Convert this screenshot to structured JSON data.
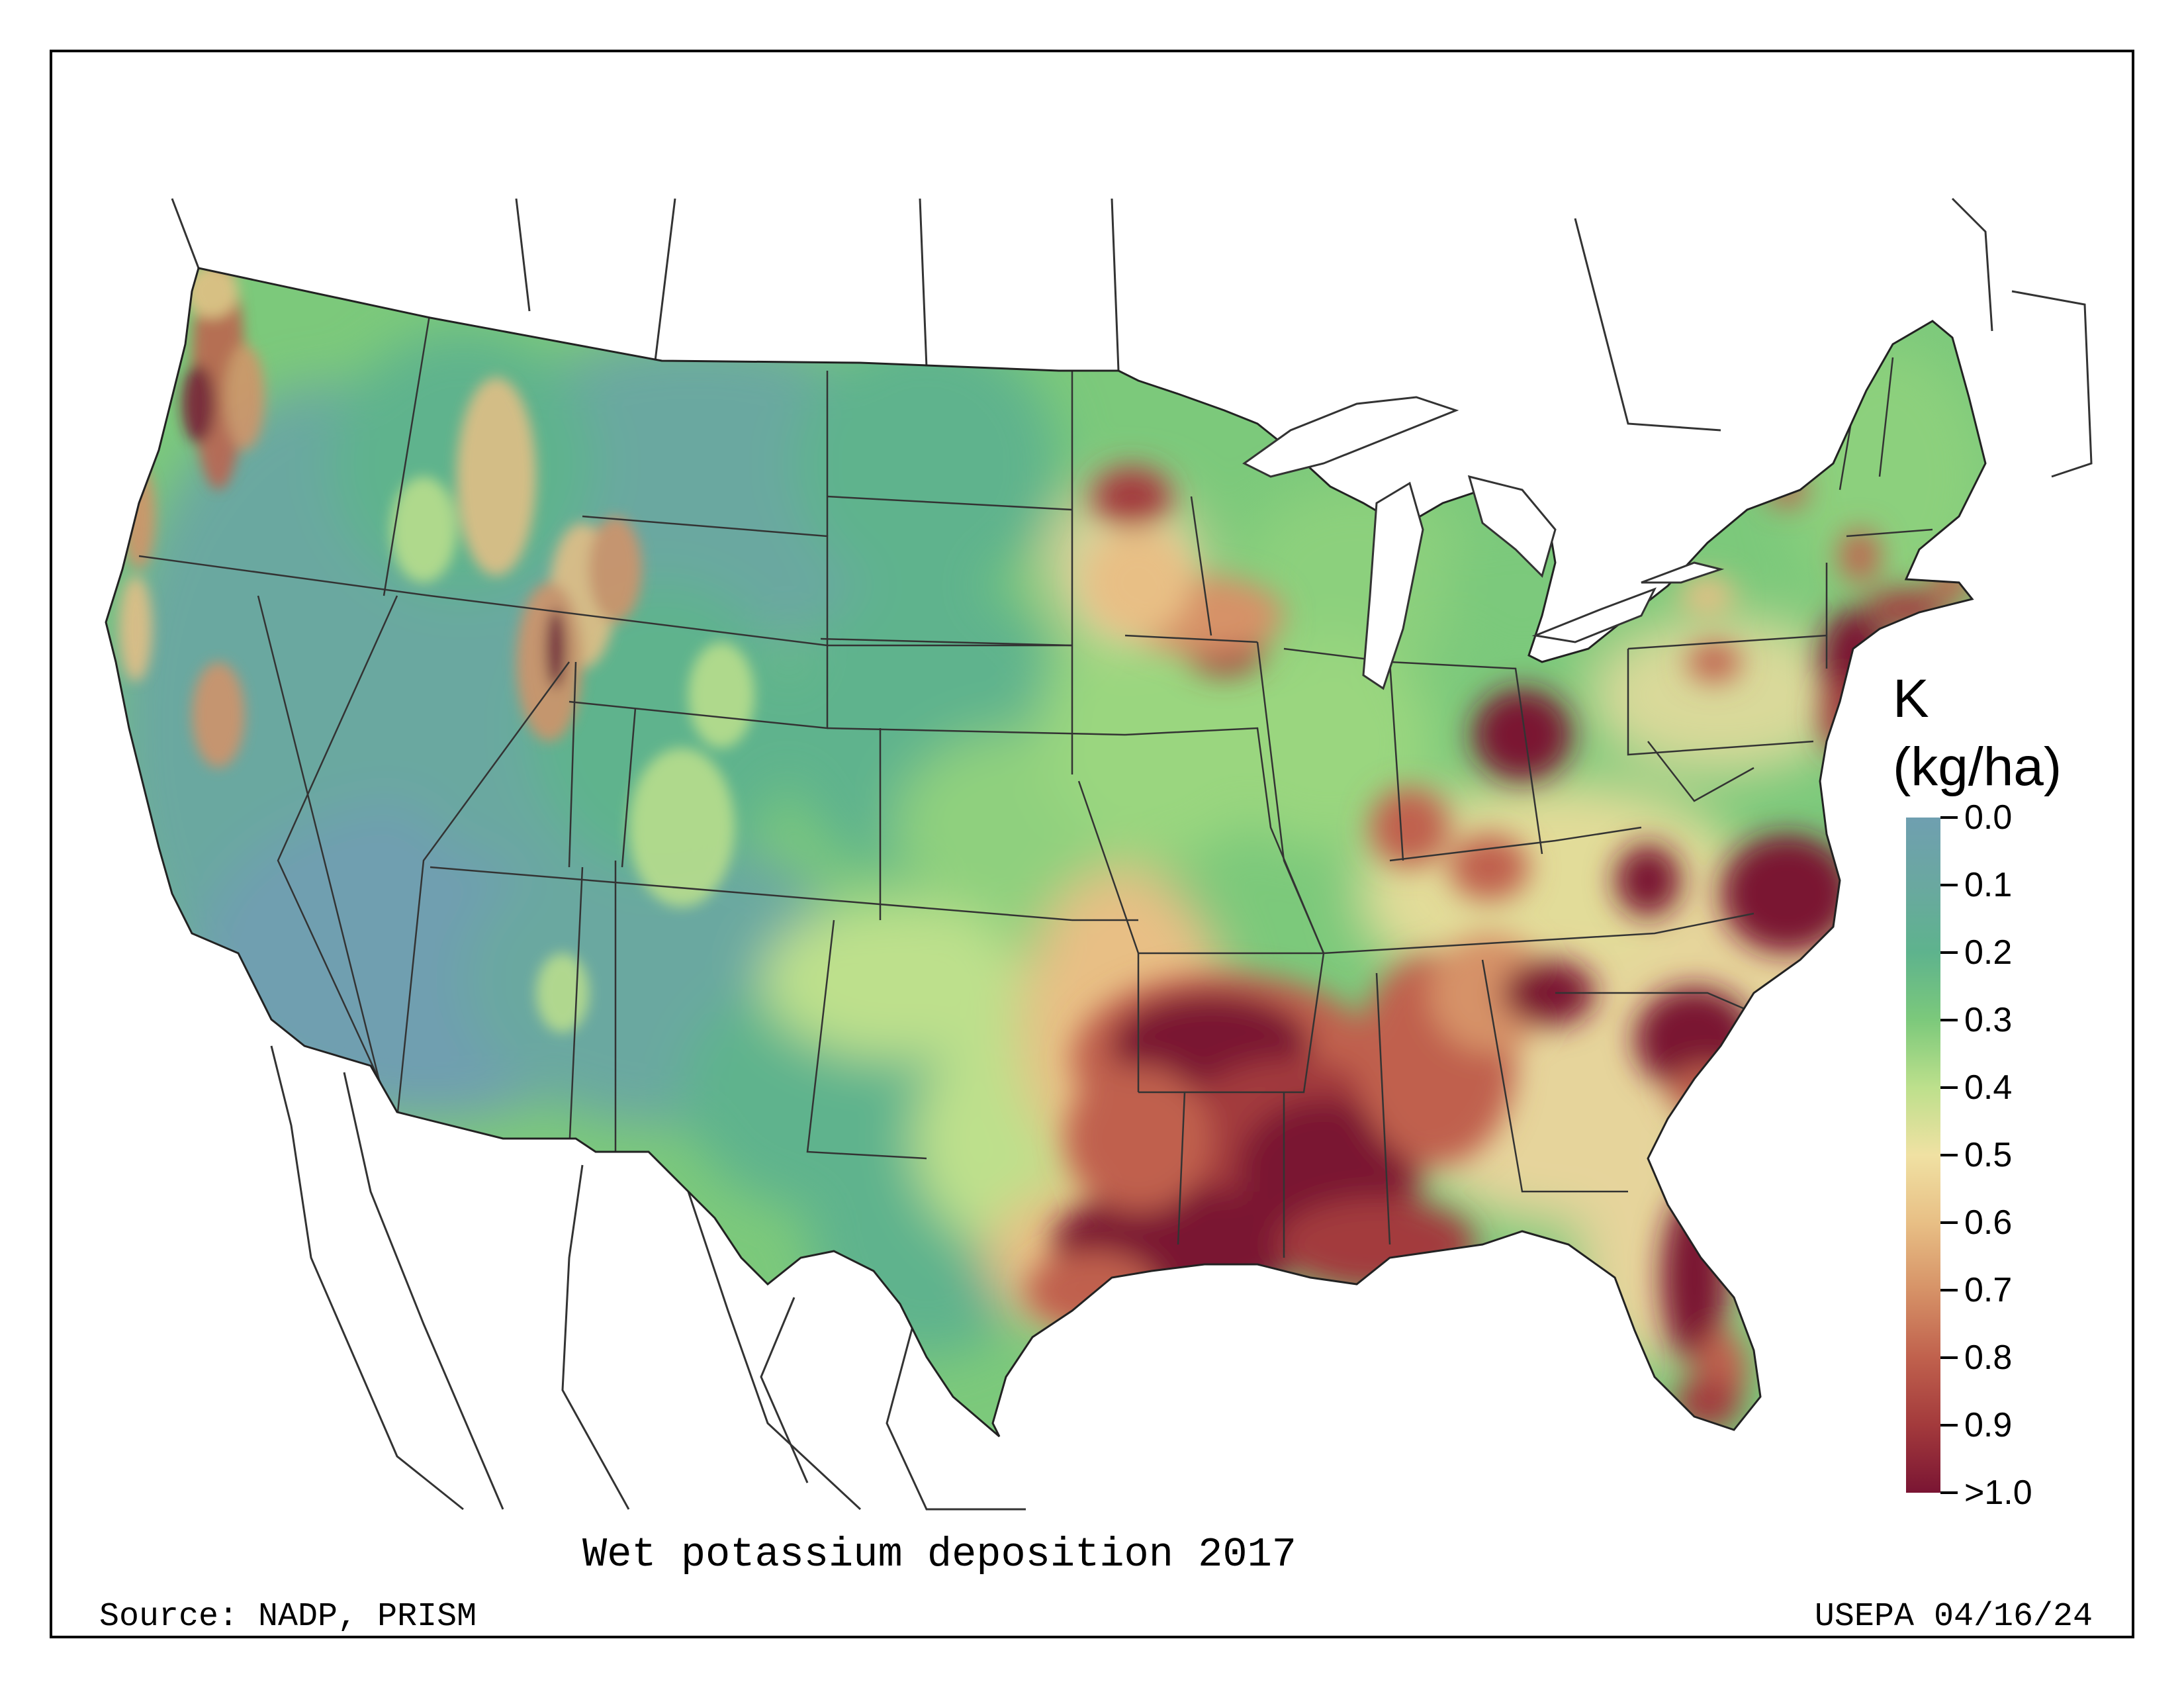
{
  "map": {
    "title": "Wet potassium deposition 2017",
    "source": "Source: NADP, PRISM",
    "credit": "USEPA 04/16/24",
    "projection": "Albers equal-area (conterminous US)",
    "colors": {
      "frame": "#000000",
      "borders": "#333333"
    }
  },
  "legend": {
    "title_line1": "K",
    "title_line2": "(kg/ha)",
    "ticks": [
      "0.0",
      "0.1",
      "0.2",
      "0.3",
      "0.4",
      "0.5",
      "0.6",
      "0.7",
      "0.8",
      "0.9",
      ">1.0"
    ],
    "colors": [
      "#6f9fb0",
      "#6aa8a0",
      "#5eb38d",
      "#7cc97b",
      "#bde08c",
      "#f0e1a3",
      "#e8bf85",
      "#d69267",
      "#c0614d",
      "#a33a3c",
      "#7a1533"
    ]
  }
}
